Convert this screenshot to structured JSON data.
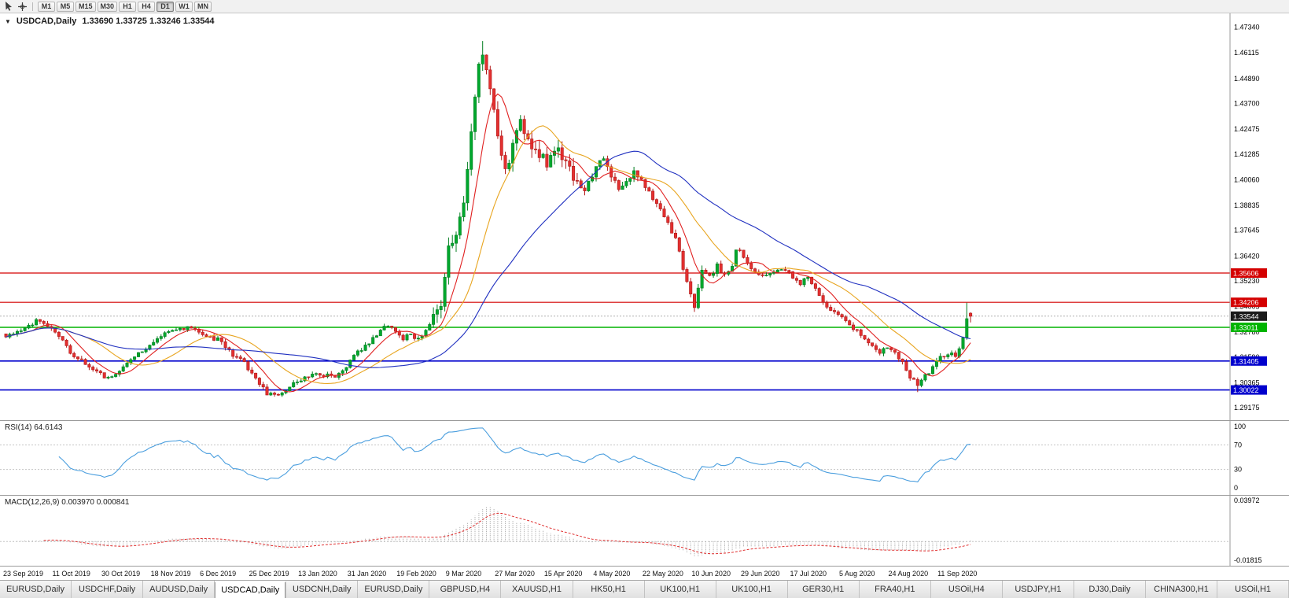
{
  "toolbar": {
    "timeframes": [
      "M1",
      "M5",
      "M15",
      "M30",
      "H1",
      "H4",
      "D1",
      "W1",
      "MN"
    ],
    "active": "D1"
  },
  "chart": {
    "marker": "▼",
    "symbol_label": "USDCAD,Daily",
    "ohlc": "1.33690 1.33725 1.33246 1.33544"
  },
  "tabs": {
    "active_index": 3,
    "items": [
      "EURUSD,Daily",
      "USDCHF,Daily",
      "AUDUSD,Daily",
      "USDCAD,Daily",
      "USDCNH,Daily",
      "EURUSD,Daily",
      "GBPUSD,H4",
      "XAUUSD,H1",
      "HK50,H1",
      "UK100,H1",
      "UK100,H1",
      "GER30,H1",
      "FRA40,H1",
      "USOil,H4",
      "USDJPY,H1",
      "DJ30,Daily",
      "CHINA300,H1",
      "USOil,H1"
    ]
  },
  "chart_data": {
    "type": "candlestick",
    "symbol": "USDCAD",
    "timeframe": "Daily",
    "bar_count": 256,
    "label_every_bars": 13,
    "x_labels": [
      "23 Sep 2019",
      "11 Oct 2019",
      "30 Oct 2019",
      "18 Nov 2019",
      "6 Dec 2019",
      "25 Dec 2019",
      "13 Jan 2020",
      "31 Jan 2020",
      "19 Feb 2020",
      "9 Mar 2020",
      "27 Mar 2020",
      "15 Apr 2020",
      "4 May 2020",
      "22 May 2020",
      "10 Jun 2020",
      "29 Jun 2020",
      "17 Jul 2020",
      "5 Aug 2020",
      "24 Aug 2020",
      "11 Sep 2020"
    ],
    "price_axis_ticks": [
      "1.47340",
      "1.46115",
      "1.44890",
      "1.43700",
      "1.42475",
      "1.41285",
      "1.40060",
      "1.38835",
      "1.37645",
      "1.36420",
      "1.35230",
      "1.34005",
      "1.32780",
      "1.31590",
      "1.30365",
      "1.29175"
    ],
    "price_range": {
      "top": 1.48,
      "bottom": 1.2858
    },
    "spike_high": 1.4668,
    "sep_low": 1.2992,
    "last_candle": {
      "open": 1.3369,
      "high": 1.33725,
      "low": 1.33246,
      "close": 1.33544
    },
    "close_anchors": [
      [
        0,
        1.3255
      ],
      [
        4,
        1.329
      ],
      [
        8,
        1.333
      ],
      [
        11,
        1.331
      ],
      [
        13,
        1.327
      ],
      [
        15,
        1.323
      ],
      [
        17,
        1.3185
      ],
      [
        20,
        1.314
      ],
      [
        23,
        1.3095
      ],
      [
        26,
        1.3065
      ],
      [
        28,
        1.3075
      ],
      [
        31,
        1.3105
      ],
      [
        34,
        1.316
      ],
      [
        37,
        1.32
      ],
      [
        39,
        1.3235
      ],
      [
        42,
        1.327
      ],
      [
        45,
        1.329
      ],
      [
        48,
        1.33
      ],
      [
        51,
        1.3285
      ],
      [
        54,
        1.3255
      ],
      [
        57,
        1.3235
      ],
      [
        60,
        1.317
      ],
      [
        63,
        1.313
      ],
      [
        65,
        1.3085
      ],
      [
        67,
        1.303
      ],
      [
        69,
        1.2985
      ],
      [
        71,
        1.2975
      ],
      [
        73,
        1.2995
      ],
      [
        76,
        1.303
      ],
      [
        78,
        1.3055
      ],
      [
        81,
        1.307
      ],
      [
        84,
        1.3075
      ],
      [
        87,
        1.306
      ],
      [
        89,
        1.309
      ],
      [
        91,
        1.314
      ],
      [
        93,
        1.318
      ],
      [
        96,
        1.323
      ],
      [
        99,
        1.329
      ],
      [
        101,
        1.331
      ],
      [
        103,
        1.328
      ],
      [
        105,
        1.325
      ],
      [
        107,
        1.327
      ],
      [
        109,
        1.324
      ],
      [
        111,
        1.329
      ],
      [
        113,
        1.334
      ],
      [
        115,
        1.342
      ],
      [
        116,
        1.353
      ],
      [
        117,
        1.366
      ],
      [
        118,
        1.371
      ],
      [
        119,
        1.3755
      ],
      [
        120,
        1.386
      ],
      [
        121,
        1.392
      ],
      [
        122,
        1.408
      ],
      [
        123,
        1.426
      ],
      [
        124,
        1.442
      ],
      [
        125,
        1.453
      ],
      [
        126,
        1.462
      ],
      [
        127,
        1.455
      ],
      [
        128,
        1.447
      ],
      [
        129,
        1.433
      ],
      [
        130,
        1.421
      ],
      [
        131,
        1.41
      ],
      [
        132,
        1.404
      ],
      [
        134,
        1.415
      ],
      [
        136,
        1.428
      ],
      [
        138,
        1.417
      ],
      [
        140,
        1.412
      ],
      [
        143,
        1.409
      ],
      [
        145,
        1.414
      ],
      [
        147,
        1.412
      ],
      [
        149,
        1.406
      ],
      [
        151,
        1.4
      ],
      [
        153,
        1.396
      ],
      [
        156,
        1.406
      ],
      [
        158,
        1.411
      ],
      [
        160,
        1.403
      ],
      [
        162,
        1.397
      ],
      [
        164,
        1.401
      ],
      [
        166,
        1.404
      ],
      [
        169,
        1.398
      ],
      [
        171,
        1.392
      ],
      [
        173,
        1.387
      ],
      [
        175,
        1.38
      ],
      [
        177,
        1.372
      ],
      [
        179,
        1.358
      ],
      [
        181,
        1.345
      ],
      [
        182,
        1.34
      ],
      [
        183,
        1.348
      ],
      [
        184,
        1.356
      ],
      [
        186,
        1.3545
      ],
      [
        188,
        1.359
      ],
      [
        190,
        1.3555
      ],
      [
        192,
        1.36
      ],
      [
        193,
        1.368
      ],
      [
        195,
        1.364
      ],
      [
        197,
        1.359
      ],
      [
        199,
        1.356
      ],
      [
        201,
        1.3545
      ],
      [
        203,
        1.356
      ],
      [
        205,
        1.358
      ],
      [
        208,
        1.3545
      ],
      [
        210,
        1.351
      ],
      [
        212,
        1.355
      ],
      [
        214,
        1.348
      ],
      [
        216,
        1.342
      ],
      [
        218,
        1.338
      ],
      [
        221,
        1.3345
      ],
      [
        223,
        1.331
      ],
      [
        225,
        1.328
      ],
      [
        227,
        1.325
      ],
      [
        229,
        1.322
      ],
      [
        231,
        1.318
      ],
      [
        233,
        1.321
      ],
      [
        235,
        1.319
      ],
      [
        237,
        1.313
      ],
      [
        239,
        1.306
      ],
      [
        241,
        1.303
      ],
      [
        243,
        1.307
      ],
      [
        245,
        1.311
      ],
      [
        247,
        1.3155
      ],
      [
        249,
        1.318
      ],
      [
        251,
        1.3165
      ],
      [
        252,
        1.319
      ],
      [
        253,
        1.326
      ],
      [
        254,
        1.334
      ],
      [
        255,
        1.33544
      ]
    ],
    "colors": {
      "bull": "#00a82d",
      "bull_edge": "#007d1f",
      "bear": "#e33030",
      "bear_edge": "#b01818",
      "axis_line": "#9a9a9a"
    },
    "horizontal_lines": [
      {
        "price": 1.35606,
        "label": "1.35606",
        "color": "#d40000",
        "width": 1.2
      },
      {
        "price": 1.34206,
        "label": "1.34206",
        "color": "#d40000",
        "width": 1.2
      },
      {
        "price": 1.33011,
        "label": "1.33011",
        "color": "#00b400",
        "width": 1.4
      },
      {
        "price": 1.31405,
        "label": "1.31405",
        "color": "#0000cd",
        "width": 1.6
      },
      {
        "price": 1.30022,
        "label": "1.30022",
        "color": "#0000cd",
        "width": 1.6
      }
    ],
    "current_price": {
      "value": 1.33544,
      "label": "1.33544",
      "color": "#1a1a1a"
    },
    "moving_averages": [
      {
        "name": "fast-ma",
        "period": 8,
        "color": "#e02020"
      },
      {
        "name": "medium-ma",
        "period": 20,
        "color": "#e8a520"
      },
      {
        "name": "slow-ma",
        "period": 45,
        "color": "#2030c0"
      }
    ],
    "rsi": {
      "label": "RSI(14) 64.6143",
      "period": 14,
      "current": 64.6143,
      "axis_labels": [
        "100",
        "70",
        "30",
        "0"
      ],
      "levels": [
        70,
        30
      ],
      "line_color": "#4a9ede"
    },
    "macd": {
      "label": "MACD(12,26,9) 0.003970 0.000841",
      "fast": 12,
      "slow": 26,
      "signal": 9,
      "main_value": 0.00397,
      "signal_value": 0.000841,
      "axis_max_label": "0.03972",
      "axis_min_label": "-0.01815",
      "axis_max": 0.03972,
      "axis_min": -0.01815,
      "hist_color": "#9a9a9a",
      "signal_color": "#e03030"
    }
  }
}
